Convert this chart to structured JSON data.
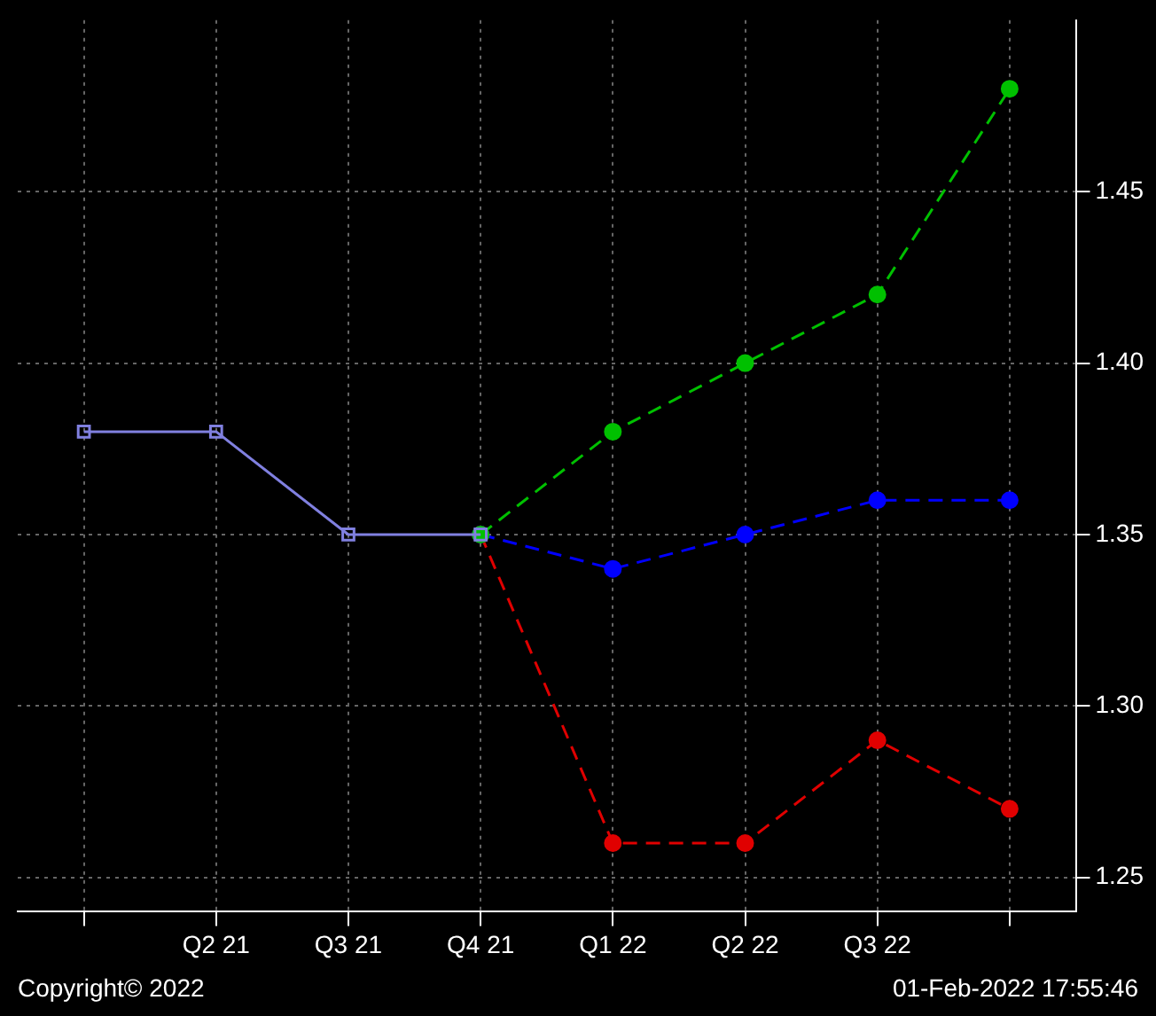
{
  "chart_data": {
    "type": "line",
    "categories": [
      null,
      "Q2 21",
      "Q3 21",
      "Q4 21",
      "Q1 22",
      "Q2 22",
      "Q3 22",
      null
    ],
    "series": [
      {
        "color": "#8080e0",
        "values": [
          1.38,
          1.38,
          1.35,
          1.35,
          null,
          null,
          null,
          null
        ],
        "marker": "square",
        "line_style": "solid"
      },
      {
        "color": "#00c000",
        "values": [
          null,
          null,
          null,
          1.35,
          1.38,
          1.4,
          1.42,
          1.48
        ],
        "marker": "circle",
        "line_style": "dashed"
      },
      {
        "color": "#0000ff",
        "values": [
          null,
          null,
          null,
          1.35,
          1.34,
          1.35,
          1.36,
          1.36
        ],
        "marker": "circle",
        "line_style": "dashed"
      },
      {
        "color": "#e00000",
        "values": [
          null,
          null,
          null,
          1.35,
          1.26,
          1.26,
          1.29,
          1.27
        ],
        "marker": "circle",
        "line_style": "dashed"
      }
    ],
    "ylim": [
      1.24,
      1.5
    ],
    "yticks": [
      1.25,
      {
        "value": 1.3,
        "label": "1.30"
      },
      1.35,
      {
        "value": 1.4,
        "label": "1.40"
      },
      1.45
    ],
    "grid": true,
    "legend": false,
    "annotations": [
      "Copyright© 2022",
      "01-Feb-2022 17:55:46"
    ]
  }
}
